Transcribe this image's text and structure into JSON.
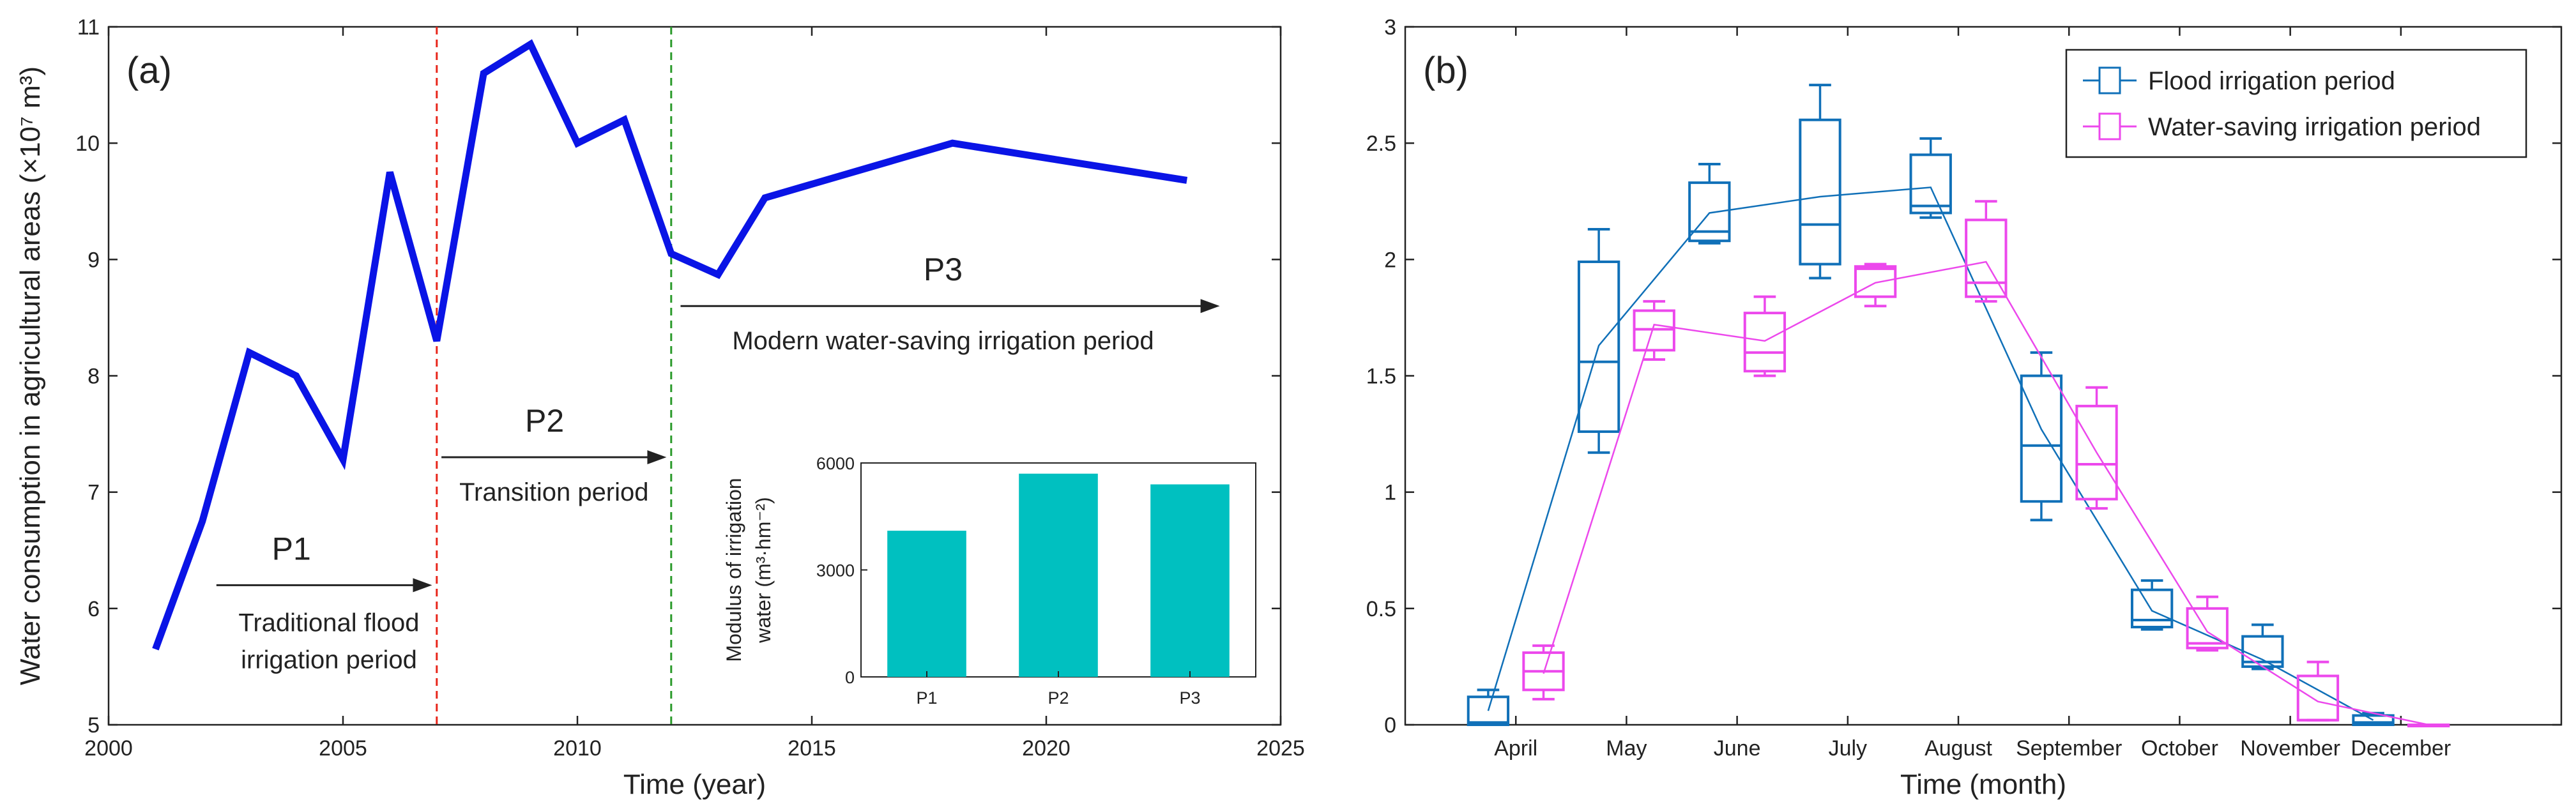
{
  "chart_data": [
    {
      "panel_label": "(a)",
      "type": "line",
      "xlabel": "Time (year)",
      "ylabel": "Water consumption in agricultural areas (×10⁷ m³)",
      "xlim": [
        2000,
        2025
      ],
      "ylim": [
        5,
        11
      ],
      "xticks": [
        "2000",
        "2005",
        "2010",
        "2015",
        "2020",
        "2025"
      ],
      "yticks": [
        "5",
        "6",
        "7",
        "8",
        "9",
        "10",
        "11"
      ],
      "line_color": "#0a14e6",
      "x": [
        2001,
        2002,
        2003,
        2004,
        2005,
        2006,
        2007,
        2008,
        2009,
        2010,
        2011,
        2012,
        2013,
        2014,
        2018,
        2023
      ],
      "y": [
        5.65,
        6.75,
        8.2,
        8.0,
        7.28,
        9.75,
        8.3,
        10.6,
        10.85,
        10.0,
        10.2,
        9.05,
        8.87,
        9.53,
        10.0,
        9.68
      ],
      "vlines": [
        {
          "x": 2007,
          "color": "#e8261b"
        },
        {
          "x": 2012,
          "color": "#2a9a2a"
        }
      ],
      "periods": [
        {
          "label": "P1",
          "description_line1": "Traditional flood",
          "description_line2": "irrigation period",
          "arrow_from": 2002.3,
          "arrow_to": 2006.9,
          "arrow_y": 6.2
        },
        {
          "label": "P2",
          "description_line1": "Transition period",
          "arrow_from": 2007.1,
          "arrow_to": 2011.9,
          "arrow_y": 7.3
        },
        {
          "label": "P3",
          "description_line1": "Modern water-saving irrigation period",
          "arrow_from": 2012.2,
          "arrow_to": 2023.7,
          "arrow_y": 8.6
        }
      ],
      "inset": {
        "type": "bar",
        "ylabel_line1": "Modulus of irrigation",
        "ylabel_line2": "water (m³·hm⁻²)",
        "categories": [
          "P1",
          "P2",
          "P3"
        ],
        "values": [
          4100,
          5700,
          5400
        ],
        "ylim": [
          0,
          6000
        ],
        "yticks": [
          "0",
          "3000",
          "6000"
        ],
        "bar_color": "#00c0c0"
      }
    },
    {
      "panel_label": "(b)",
      "type": "box",
      "xlabel": "Time (month)",
      "ylabel": "",
      "ylim": [
        0,
        3
      ],
      "yticks": [
        "0",
        "0.5",
        "1",
        "1.5",
        "2",
        "2.5",
        "3"
      ],
      "categories": [
        "April",
        "May",
        "June",
        "July",
        "August",
        "September",
        "October",
        "November",
        "December"
      ],
      "series": [
        {
          "name": "Flood irrigation period",
          "color": "#1070b8",
          "offset": -0.25,
          "boxes": [
            {
              "min": 0.0,
              "q1": 0.0,
              "median": 0.01,
              "q3": 0.12,
              "max": 0.15
            },
            {
              "min": 1.17,
              "q1": 1.26,
              "median": 1.56,
              "q3": 1.99,
              "max": 2.13
            },
            {
              "min": 2.07,
              "q1": 2.08,
              "median": 2.12,
              "q3": 2.33,
              "max": 2.41
            },
            {
              "min": 1.92,
              "q1": 1.98,
              "median": 2.15,
              "q3": 2.6,
              "max": 2.75
            },
            {
              "min": 2.18,
              "q1": 2.2,
              "median": 2.23,
              "q3": 2.45,
              "max": 2.52
            },
            {
              "min": 0.88,
              "q1": 0.96,
              "median": 1.2,
              "q3": 1.5,
              "max": 1.6
            },
            {
              "min": 0.41,
              "q1": 0.42,
              "median": 0.45,
              "q3": 0.58,
              "max": 0.62
            },
            {
              "min": 0.24,
              "q1": 0.25,
              "median": 0.27,
              "q3": 0.38,
              "max": 0.43
            },
            {
              "min": 0.0,
              "q1": 0.0,
              "median": 0.01,
              "q3": 0.04,
              "max": 0.05
            }
          ],
          "mean": [
            0.06,
            1.63,
            2.2,
            2.27,
            2.31,
            1.27,
            0.49,
            0.28,
            0.02
          ]
        },
        {
          "name": "Water-saving irrigation period",
          "color": "#ec48ec",
          "offset": 0.25,
          "boxes": [
            {
              "min": 0.11,
              "q1": 0.15,
              "median": 0.23,
              "q3": 0.31,
              "max": 0.34
            },
            {
              "min": 1.57,
              "q1": 1.61,
              "median": 1.7,
              "q3": 1.78,
              "max": 1.82
            },
            {
              "min": 1.5,
              "q1": 1.52,
              "median": 1.6,
              "q3": 1.77,
              "max": 1.84
            },
            {
              "min": 1.8,
              "q1": 1.84,
              "median": 1.96,
              "q3": 1.97,
              "max": 1.98
            },
            {
              "min": 1.82,
              "q1": 1.84,
              "median": 1.9,
              "q3": 2.17,
              "max": 2.25
            },
            {
              "min": 0.93,
              "q1": 0.97,
              "median": 1.12,
              "q3": 1.37,
              "max": 1.45
            },
            {
              "min": 0.32,
              "q1": 0.33,
              "median": 0.35,
              "q3": 0.5,
              "max": 0.55
            },
            {
              "min": 0.02,
              "q1": 0.02,
              "median": 0.02,
              "q3": 0.21,
              "max": 0.27
            },
            {
              "min": 0.0,
              "q1": 0.0,
              "median": 0.0,
              "q3": 0.0,
              "max": 0.0
            }
          ],
          "mean": [
            0.22,
            1.72,
            1.65,
            1.9,
            1.99,
            1.17,
            0.4,
            0.1,
            0.0
          ]
        }
      ],
      "legend": {
        "location": "top-right"
      }
    }
  ]
}
